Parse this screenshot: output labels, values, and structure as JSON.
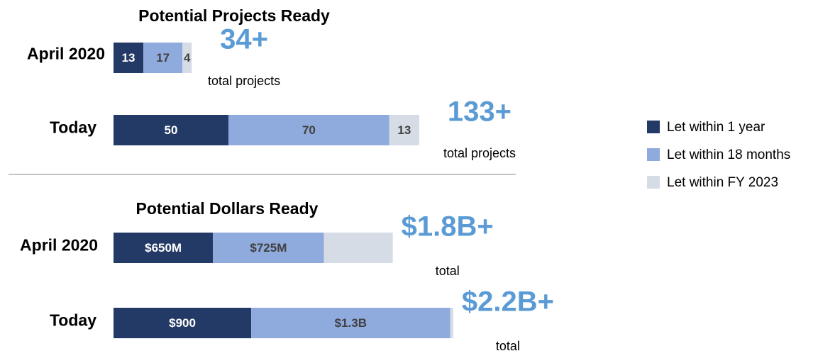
{
  "chart_data": [
    {
      "type": "stacked-bar-horizontal",
      "title": "Potential Projects Ready",
      "categories": [
        "April 2020",
        "Today"
      ],
      "series": [
        {
          "name": "Let within 1 year",
          "color": "#243a66",
          "values": [
            13,
            50
          ]
        },
        {
          "name": "Let within 18 months",
          "color": "#8faadc",
          "values": [
            17,
            70
          ]
        },
        {
          "name": "Let within FY 2023",
          "color": "#d6dce5",
          "values": [
            4,
            13
          ]
        }
      ],
      "annotations": [
        {
          "text": "34+",
          "note": "total projects"
        },
        {
          "text": "133+",
          "note": "total projects"
        }
      ]
    },
    {
      "type": "stacked-bar-horizontal",
      "title": "Potential Dollars Ready",
      "categories": [
        "April 2020",
        "Today"
      ],
      "series": [
        {
          "name": "Let within 1 year",
          "color": "#243a66",
          "values": [
            650,
            900
          ],
          "value_labels": [
            "$650M",
            "$900"
          ]
        },
        {
          "name": "Let within 18 months",
          "color": "#8faadc",
          "values": [
            725,
            1300
          ],
          "value_labels": [
            "$725M",
            "$1.3B"
          ]
        },
        {
          "name": "Let within FY 2023",
          "color": "#d6dce5",
          "values": [
            450,
            20
          ],
          "value_labels": [
            null,
            null
          ]
        }
      ],
      "annotations": [
        {
          "text": "$1.8B+",
          "note": "total"
        },
        {
          "text": "$2.2B+",
          "note": "total"
        }
      ]
    }
  ]
}
